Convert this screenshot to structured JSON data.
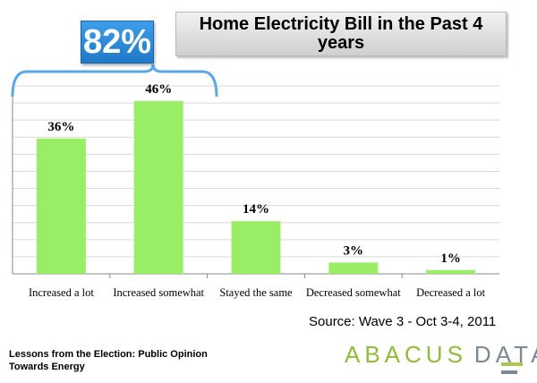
{
  "title": "Home Electricity Bill in the Past 4 years",
  "callout": {
    "label": "82%"
  },
  "source": "Source: Wave 3 - Oct 3-4, 2011",
  "footer_note": "Lessons from the Election: Public Opinion Towards Energy",
  "logo": {
    "part1": "ABACUS",
    "part2": "DATA"
  },
  "colors": {
    "bar": "#99ee66",
    "callout": "#2b8ad9",
    "brace": "#5aa9e6",
    "grid": "#d9d9d9"
  },
  "chart_data": {
    "type": "bar",
    "categories": [
      "Increased a lot",
      "Increased somewhat",
      "Stayed the same",
      "Decreased somewhat",
      "Decreased a lot"
    ],
    "values": [
      36,
      46,
      14,
      3,
      1
    ],
    "data_labels": [
      "36%",
      "46%",
      "14%",
      "3%",
      "1%"
    ],
    "title": "Home Electricity Bill in the Past 4 years",
    "ylim": [
      0,
      50
    ],
    "grid": true,
    "grouped_categories": [
      "Increased a lot",
      "Increased somewhat"
    ]
  }
}
